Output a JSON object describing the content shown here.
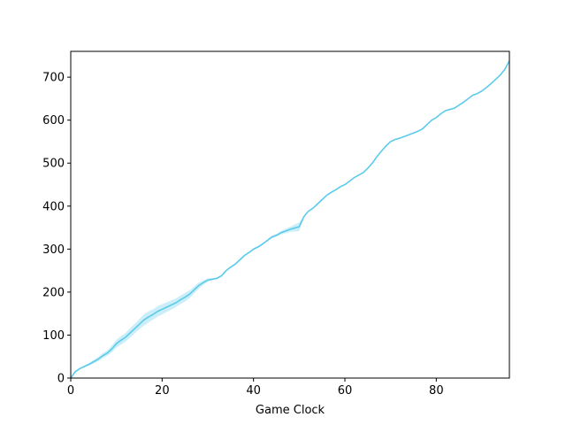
{
  "chart_data": {
    "type": "line",
    "title": "",
    "xlabel": "Game Clock",
    "ylabel": "",
    "xlim": [
      0,
      96
    ],
    "ylim": [
      0,
      760
    ],
    "x_ticks": [
      0,
      20,
      40,
      60,
      80
    ],
    "y_ticks": [
      0,
      100,
      200,
      300,
      400,
      500,
      600,
      700
    ],
    "grid": false,
    "legend": "none",
    "colors": {
      "line": "#5bcbeb",
      "band": "#a9e2f4",
      "axis": "#000000"
    },
    "series": [
      {
        "x": [
          0,
          1,
          2,
          3,
          4,
          5,
          6,
          7,
          8,
          9,
          10,
          11,
          12,
          13,
          14,
          15,
          16,
          17,
          18,
          19,
          20,
          21,
          22,
          23,
          24,
          25,
          26,
          27,
          28,
          29,
          30,
          31,
          32,
          33,
          34,
          35,
          36,
          37,
          38,
          39,
          40,
          41,
          42,
          43,
          44,
          45,
          46,
          47,
          48,
          49,
          50,
          51,
          51.5,
          52,
          53,
          54,
          55,
          56,
          57,
          58,
          59,
          60,
          61,
          62,
          63,
          64,
          65,
          66,
          67,
          68,
          69,
          70,
          71,
          72,
          73,
          74,
          75,
          76,
          77,
          78,
          79,
          80,
          81,
          82,
          83,
          84,
          85,
          86,
          87,
          88,
          89,
          90,
          91,
          92,
          93,
          94,
          95,
          96
        ],
        "y": [
          0,
          15,
          22,
          27,
          32,
          38,
          44,
          52,
          58,
          68,
          80,
          88,
          95,
          105,
          115,
          125,
          135,
          142,
          148,
          155,
          160,
          165,
          170,
          175,
          182,
          188,
          195,
          205,
          215,
          222,
          228,
          230,
          232,
          238,
          250,
          258,
          265,
          275,
          285,
          292,
          300,
          305,
          312,
          320,
          328,
          332,
          338,
          342,
          346,
          349,
          352,
          375,
          382,
          388,
          395,
          405,
          415,
          425,
          432,
          438,
          445,
          450,
          458,
          466,
          472,
          478,
          488,
          500,
          515,
          528,
          540,
          550,
          555,
          558,
          562,
          566,
          570,
          574,
          580,
          590,
          600,
          606,
          615,
          622,
          625,
          628,
          635,
          642,
          650,
          658,
          662,
          668,
          676,
          685,
          695,
          705,
          718,
          738
        ],
        "lower": [
          0,
          13,
          20,
          25,
          29,
          34,
          39,
          46,
          52,
          60,
          71,
          78,
          85,
          94,
          104,
          113,
          122,
          129,
          136,
          143,
          148,
          154,
          159,
          165,
          172,
          178,
          186,
          197,
          208,
          217,
          224,
          228,
          230,
          236,
          248,
          256,
          263,
          273,
          283,
          290,
          298,
          303,
          310,
          318,
          325,
          329,
          334,
          337,
          340,
          341,
          342,
          373,
          381,
          387,
          394,
          404,
          414,
          424,
          431,
          437,
          444,
          449,
          457,
          465,
          471,
          477,
          487,
          499,
          514,
          527,
          539,
          549,
          554,
          557,
          561,
          565,
          569,
          573,
          579,
          589,
          599,
          605,
          614,
          621,
          624,
          627,
          634,
          641,
          649,
          657,
          661,
          667,
          675,
          684,
          694,
          704,
          717,
          737
        ],
        "upper": [
          0,
          17,
          24,
          29,
          35,
          42,
          49,
          58,
          64,
          76,
          89,
          98,
          105,
          116,
          126,
          137,
          148,
          155,
          160,
          167,
          172,
          176,
          181,
          185,
          192,
          198,
          204,
          213,
          222,
          227,
          232,
          232,
          234,
          240,
          252,
          260,
          267,
          277,
          287,
          294,
          302,
          307,
          314,
          322,
          331,
          335,
          342,
          347,
          352,
          357,
          362,
          377,
          383,
          389,
          396,
          406,
          416,
          426,
          433,
          439,
          446,
          451,
          459,
          467,
          473,
          479,
          489,
          501,
          516,
          529,
          541,
          551,
          556,
          559,
          563,
          567,
          571,
          575,
          581,
          591,
          601,
          607,
          616,
          623,
          626,
          629,
          636,
          643,
          651,
          659,
          663,
          669,
          677,
          686,
          696,
          706,
          719,
          739
        ]
      }
    ]
  }
}
